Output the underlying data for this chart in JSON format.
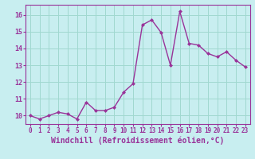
{
  "x": [
    0,
    1,
    2,
    3,
    4,
    5,
    6,
    7,
    8,
    9,
    10,
    11,
    12,
    13,
    14,
    15,
    16,
    17,
    18,
    19,
    20,
    21,
    22,
    23
  ],
  "y": [
    10.0,
    9.8,
    10.0,
    10.2,
    10.1,
    9.8,
    10.8,
    10.3,
    10.3,
    10.5,
    11.4,
    11.9,
    15.4,
    15.7,
    14.95,
    13.0,
    16.2,
    14.3,
    14.2,
    13.7,
    13.5,
    13.8,
    13.3,
    12.9
  ],
  "line_color": "#993399",
  "marker": "D",
  "marker_size": 2,
  "bg_color": "#c8eef0",
  "grid_color": "#a0d8d0",
  "xlabel": "Windchill (Refroidissement éolien,°C)",
  "xlabel_fontsize": 7,
  "ylim": [
    9.5,
    16.6
  ],
  "xlim": [
    -0.5,
    23.5
  ],
  "yticks": [
    10,
    11,
    12,
    13,
    14,
    15,
    16
  ],
  "xtick_labels": [
    "0",
    "1",
    "2",
    "3",
    "4",
    "5",
    "6",
    "7",
    "8",
    "9",
    "10",
    "11",
    "12",
    "13",
    "14",
    "15",
    "16",
    "17",
    "18",
    "19",
    "20",
    "21",
    "22",
    "23"
  ],
  "tick_color": "#993399",
  "tick_fontsize": 5.5,
  "line_width": 1.0
}
